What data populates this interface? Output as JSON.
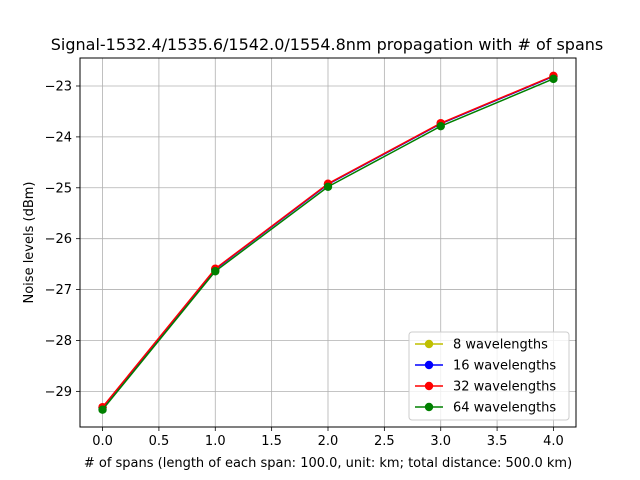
{
  "chart_data": {
    "type": "line",
    "title": "Signal-1532.4/1535.6/1542.0/1554.8nm propagation with # of spans",
    "xlabel": "# of spans (length of each span: 100.0, unit: km; total distance: 500.0 km)",
    "ylabel": "Noise levels (dBm)",
    "xlim": [
      -0.2,
      4.2
    ],
    "ylim": [
      -29.7,
      -22.45
    ],
    "xticks": [
      0.0,
      0.5,
      1.0,
      1.5,
      2.0,
      2.5,
      3.0,
      3.5,
      4.0
    ],
    "xtick_labels": [
      "0.0",
      "0.5",
      "1.0",
      "1.5",
      "2.0",
      "2.5",
      "3.0",
      "3.5",
      "4.0"
    ],
    "yticks": [
      -29,
      -28,
      -27,
      -26,
      -25,
      -24,
      -23
    ],
    "ytick_labels": [
      "−29",
      "−28",
      "−27",
      "−26",
      "−25",
      "−24",
      "−23"
    ],
    "grid": true,
    "legend_position": "lower-right",
    "x": [
      0,
      1,
      2,
      3,
      4
    ],
    "series": [
      {
        "name": "8 wavelengths",
        "color": "#bfbf00",
        "values": [
          -29.32,
          -26.6,
          -24.93,
          -23.74,
          -22.81
        ]
      },
      {
        "name": "16 wavelengths",
        "color": "#0000ff",
        "values": [
          -29.32,
          -26.6,
          -24.93,
          -23.74,
          -22.81
        ]
      },
      {
        "name": "32 wavelengths",
        "color": "#ff0000",
        "values": [
          -29.31,
          -26.59,
          -24.92,
          -23.73,
          -22.8
        ]
      },
      {
        "name": "64 wavelengths",
        "color": "#008000",
        "values": [
          -29.36,
          -26.64,
          -24.98,
          -23.79,
          -22.86
        ]
      }
    ]
  }
}
